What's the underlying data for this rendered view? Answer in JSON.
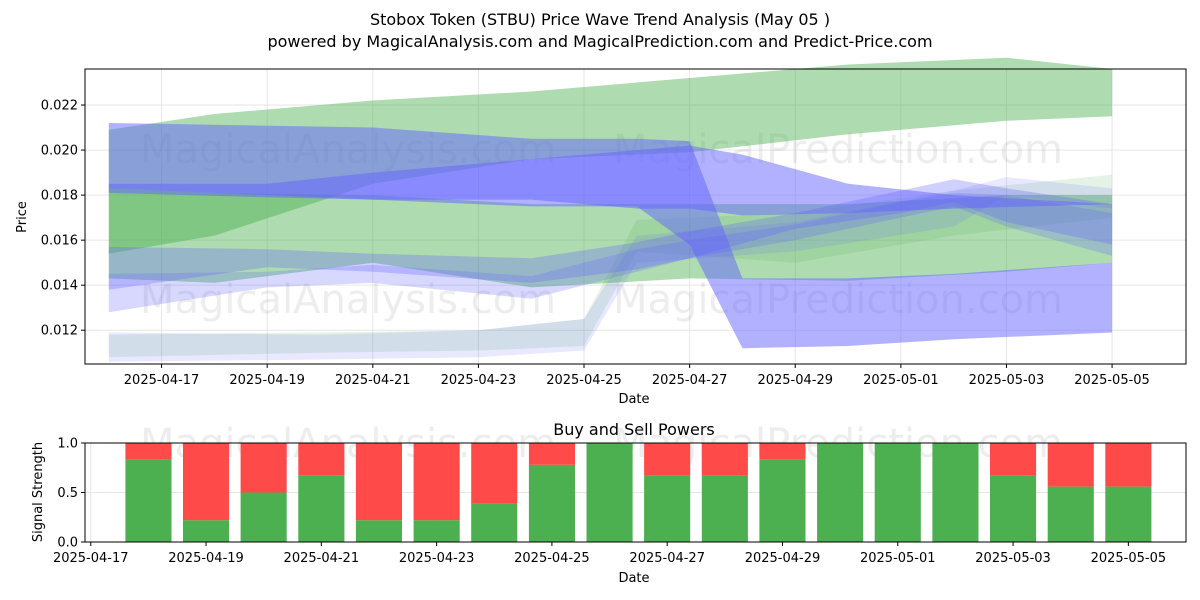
{
  "page": {
    "title": "Stobox Token (STBU) Price Wave Trend Analysis (May 05 )",
    "subtitle": "powered by MagicalAnalysis.com and MagicalPrediction.com and Predict-Price.com",
    "watermarks": [
      "MagicalAnalysis.com",
      "MagicalPrediction.com"
    ]
  },
  "colors": {
    "green_band": "#4caf50",
    "blue_band": "#6464ff",
    "buy": "#4caf50",
    "sell": "#ff4a4a",
    "grid": "#e6e6e6"
  },
  "chart_data": [
    {
      "type": "area",
      "title": "",
      "xlabel": "Date",
      "ylabel": "Price",
      "x_range": [
        "2025-04-16",
        "2025-05-06"
      ],
      "ylim": [
        0.0105,
        0.0236
      ],
      "x_ticks": [
        "2025-04-17",
        "2025-04-19",
        "2025-04-21",
        "2025-04-23",
        "2025-04-25",
        "2025-04-27",
        "2025-04-29",
        "2025-05-01",
        "2025-05-03",
        "2025-05-05"
      ],
      "y_ticks": [
        0.012,
        0.014,
        0.016,
        0.018,
        0.02,
        0.022
      ],
      "y_tick_labels": [
        "0.012",
        "0.014",
        "0.016",
        "0.018",
        "0.020",
        "0.022"
      ],
      "grid": true,
      "series": [
        {
          "color": "green",
          "alpha": 0.45,
          "x": [
            "2025-04-16",
            "2025-04-18",
            "2025-04-21",
            "2025-04-24",
            "2025-04-27",
            "2025-04-30",
            "2025-05-03",
            "2025-05-05"
          ],
          "upper": [
            0.0209,
            0.0216,
            0.0222,
            0.0226,
            0.0232,
            0.0238,
            0.0241,
            0.0236
          ],
          "lower": [
            0.0154,
            0.0162,
            0.0185,
            0.0196,
            0.0199,
            0.0207,
            0.0213,
            0.0215
          ]
        },
        {
          "color": "green",
          "alpha": 0.45,
          "x": [
            "2025-04-16",
            "2025-04-18",
            "2025-04-21",
            "2025-04-24",
            "2025-04-27",
            "2025-04-30",
            "2025-05-03",
            "2025-05-05"
          ],
          "upper": [
            0.0183,
            0.0181,
            0.018,
            0.0176,
            0.0176,
            0.0176,
            0.018,
            0.018
          ],
          "lower": [
            0.0143,
            0.0141,
            0.015,
            0.0139,
            0.0143,
            0.0142,
            0.0146,
            0.015
          ]
        },
        {
          "color": "green",
          "alpha": 0.15,
          "x": [
            "2025-04-16",
            "2025-04-20",
            "2025-04-23",
            "2025-04-25",
            "2025-04-26",
            "2025-04-29",
            "2025-05-02",
            "2025-05-05"
          ],
          "upper": [
            0.0118,
            0.0119,
            0.012,
            0.0125,
            0.0169,
            0.0172,
            0.0182,
            0.0189
          ],
          "lower": [
            0.0108,
            0.011,
            0.0111,
            0.0113,
            0.0155,
            0.015,
            0.0162,
            0.017
          ]
        },
        {
          "color": "blue",
          "alpha": 0.5,
          "x": [
            "2025-04-16",
            "2025-04-21",
            "2025-04-24",
            "2025-04-26",
            "2025-04-27",
            "2025-04-28",
            "2025-04-30",
            "2025-05-02",
            "2025-05-05"
          ],
          "upper": [
            0.0212,
            0.021,
            0.0205,
            0.0205,
            0.0204,
            0.0143,
            0.0143,
            0.0145,
            0.015
          ],
          "lower": [
            0.0183,
            0.0178,
            0.0175,
            0.0175,
            0.0158,
            0.0112,
            0.0113,
            0.0116,
            0.0119
          ]
        },
        {
          "color": "blue",
          "alpha": 0.5,
          "x": [
            "2025-04-16",
            "2025-04-19",
            "2025-04-21",
            "2025-04-24",
            "2025-04-26",
            "2025-04-27",
            "2025-04-28",
            "2025-04-30",
            "2025-05-02",
            "2025-05-05"
          ],
          "upper": [
            0.0185,
            0.0185,
            0.019,
            0.0196,
            0.02,
            0.0202,
            0.0198,
            0.0185,
            0.018,
            0.0176
          ],
          "lower": [
            0.0181,
            0.0179,
            0.0178,
            0.0178,
            0.0174,
            0.0174,
            0.0171,
            0.0172,
            0.0174,
            0.0176
          ]
        },
        {
          "color": "blue",
          "alpha": 0.3,
          "x": [
            "2025-04-16",
            "2025-04-19",
            "2025-04-21",
            "2025-04-24",
            "2025-04-26",
            "2025-04-27",
            "2025-04-29",
            "2025-05-01",
            "2025-05-02",
            "2025-05-03",
            "2025-05-05"
          ],
          "upper": [
            0.0157,
            0.0156,
            0.0154,
            0.0152,
            0.0159,
            0.0164,
            0.0172,
            0.0182,
            0.0187,
            0.0183,
            0.0176
          ],
          "lower": [
            0.0138,
            0.0148,
            0.0146,
            0.0141,
            0.0147,
            0.0152,
            0.0165,
            0.0172,
            0.0177,
            0.0168,
            0.0158
          ]
        },
        {
          "color": "blue",
          "alpha": 0.25,
          "x": [
            "2025-04-16",
            "2025-04-19",
            "2025-04-21",
            "2025-04-24",
            "2025-04-26",
            "2025-04-27",
            "2025-04-29",
            "2025-05-01",
            "2025-05-02",
            "2025-05-03",
            "2025-05-05"
          ],
          "upper": [
            0.0145,
            0.0146,
            0.0149,
            0.0144,
            0.0156,
            0.016,
            0.0167,
            0.0177,
            0.0181,
            0.018,
            0.0172
          ],
          "lower": [
            0.0128,
            0.0139,
            0.0141,
            0.0134,
            0.0146,
            0.0152,
            0.016,
            0.017,
            0.0175,
            0.0166,
            0.0153
          ]
        },
        {
          "color": "blue",
          "alpha": 0.15,
          "x": [
            "2025-04-16",
            "2025-04-20",
            "2025-04-23",
            "2025-04-25",
            "2025-04-26",
            "2025-04-29",
            "2025-05-02",
            "2025-05-03",
            "2025-05-05"
          ],
          "upper": [
            0.0119,
            0.0118,
            0.012,
            0.0125,
            0.0162,
            0.0168,
            0.0182,
            0.0188,
            0.0183
          ],
          "lower": [
            0.0106,
            0.0107,
            0.0108,
            0.0111,
            0.015,
            0.0155,
            0.0166,
            0.018,
            0.0174
          ]
        }
      ]
    },
    {
      "type": "bar",
      "title": "Buy and Sell Powers",
      "xlabel": "Date",
      "ylabel": "Signal Strength",
      "x_range": [
        "2025-04-16.9",
        "2025-05-06"
      ],
      "ylim": [
        0,
        1
      ],
      "x_ticks": [
        "2025-04-17",
        "2025-04-19",
        "2025-04-21",
        "2025-04-23",
        "2025-04-25",
        "2025-04-27",
        "2025-04-29",
        "2025-05-01",
        "2025-05-03",
        "2025-05-05"
      ],
      "y_ticks": [
        0,
        0.5,
        1
      ],
      "y_tick_labels": [
        "0.0",
        "0.5",
        "1.0"
      ],
      "grid": true,
      "categories": [
        "2025-04-18",
        "2025-04-19",
        "2025-04-20",
        "2025-04-21",
        "2025-04-22",
        "2025-04-23",
        "2025-04-24",
        "2025-04-25",
        "2025-04-26",
        "2025-04-27",
        "2025-04-28",
        "2025-04-29",
        "2025-04-30",
        "2025-05-01",
        "2025-05-02",
        "2025-05-03",
        "2025-05-04",
        "2025-05-05"
      ],
      "series": [
        {
          "name": "Buy",
          "values": [
            0.83,
            0.22,
            0.5,
            0.67,
            0.22,
            0.22,
            0.39,
            0.78,
            1.0,
            0.67,
            0.67,
            0.83,
            1.0,
            1.0,
            1.0,
            0.67,
            0.56,
            0.56
          ]
        },
        {
          "name": "Sell",
          "values": [
            0.17,
            0.78,
            0.5,
            0.33,
            0.78,
            0.78,
            0.61,
            0.22,
            0.0,
            0.33,
            0.33,
            0.17,
            0.0,
            0.0,
            0.0,
            0.33,
            0.44,
            0.44
          ]
        }
      ]
    }
  ]
}
